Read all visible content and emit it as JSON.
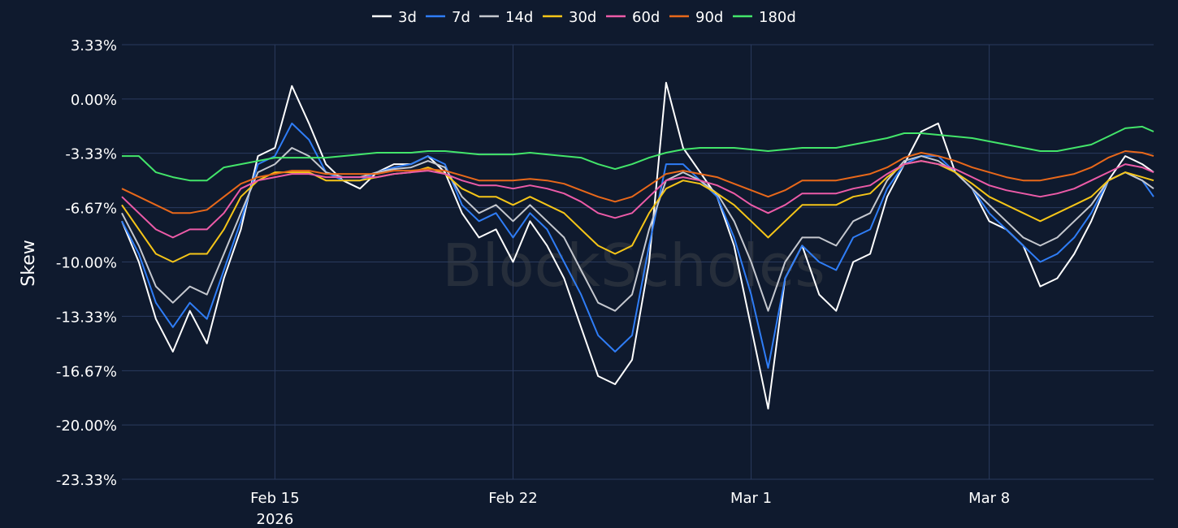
{
  "watermark": "BlockScholes",
  "colors": {
    "background": "#0f1a2e",
    "grid": "#2a3a5e"
  },
  "chart_data": {
    "type": "line",
    "title": "",
    "xlabel": "",
    "ylabel": "Skew",
    "grid": true,
    "legend_position": "top-center",
    "y_unit": "%",
    "ylim": [
      -23.33,
      3.33
    ],
    "y_ticks": [
      "3.33%",
      "0.00%",
      "-3.33%",
      "-6.67%",
      "-10.00%",
      "-13.33%",
      "-16.67%",
      "-20.00%",
      "-23.33%"
    ],
    "y_tick_values": [
      3.33,
      0.0,
      -3.33,
      -6.67,
      -10.0,
      -13.33,
      -16.67,
      -20.0,
      -23.33
    ],
    "x_ticks": [
      "Feb 15",
      "Feb 22",
      "Mar 1",
      "Mar 8"
    ],
    "x_tick_dates": [
      "2026-02-15",
      "2026-02-22",
      "2026-03-01",
      "2026-03-08"
    ],
    "x_year_label": "2026",
    "xlim": [
      "2026-02-10 12:00",
      "2026-03-12 20:00"
    ],
    "x": [
      "2026-02-10 12:00",
      "2026-02-11 00:00",
      "2026-02-11 12:00",
      "2026-02-12 00:00",
      "2026-02-12 12:00",
      "2026-02-13 00:00",
      "2026-02-13 12:00",
      "2026-02-14 00:00",
      "2026-02-14 12:00",
      "2026-02-15 00:00",
      "2026-02-15 12:00",
      "2026-02-16 00:00",
      "2026-02-16 12:00",
      "2026-02-17 00:00",
      "2026-02-17 12:00",
      "2026-02-18 00:00",
      "2026-02-18 12:00",
      "2026-02-19 00:00",
      "2026-02-19 12:00",
      "2026-02-20 00:00",
      "2026-02-20 12:00",
      "2026-02-21 00:00",
      "2026-02-21 12:00",
      "2026-02-22 00:00",
      "2026-02-22 12:00",
      "2026-02-23 00:00",
      "2026-02-23 12:00",
      "2026-02-24 00:00",
      "2026-02-24 12:00",
      "2026-02-25 00:00",
      "2026-02-25 12:00",
      "2026-02-26 00:00",
      "2026-02-26 12:00",
      "2026-02-27 00:00",
      "2026-02-27 12:00",
      "2026-02-28 00:00",
      "2026-02-28 12:00",
      "2026-03-01 00:00",
      "2026-03-01 12:00",
      "2026-03-02 00:00",
      "2026-03-02 12:00",
      "2026-03-03 00:00",
      "2026-03-03 12:00",
      "2026-03-04 00:00",
      "2026-03-04 12:00",
      "2026-03-05 00:00",
      "2026-03-05 12:00",
      "2026-03-06 00:00",
      "2026-03-06 12:00",
      "2026-03-07 00:00",
      "2026-03-07 12:00",
      "2026-03-08 00:00",
      "2026-03-08 12:00",
      "2026-03-09 00:00",
      "2026-03-09 12:00",
      "2026-03-10 00:00",
      "2026-03-10 12:00",
      "2026-03-11 00:00",
      "2026-03-11 12:00",
      "2026-03-12 00:00",
      "2026-03-12 12:00",
      "2026-03-12 20:00"
    ],
    "series": [
      {
        "name": "3d",
        "color": "#ffffff",
        "values": [
          -7.5,
          -10.0,
          -13.5,
          -15.5,
          -13.0,
          -15.0,
          -11.0,
          -8.0,
          -3.5,
          -3.0,
          0.8,
          -1.5,
          -4.0,
          -5.0,
          -5.5,
          -4.5,
          -4.0,
          -4.0,
          -3.5,
          -4.5,
          -7.0,
          -8.5,
          -8.0,
          -10.0,
          -7.5,
          -9.0,
          -11.0,
          -14.0,
          -17.0,
          -17.5,
          -16.0,
          -10.0,
          1.0,
          -3.0,
          -4.5,
          -6.0,
          -9.0,
          -14.0,
          -19.0,
          -11.0,
          -9.0,
          -12.0,
          -13.0,
          -10.0,
          -9.5,
          -6.0,
          -4.0,
          -2.0,
          -1.5,
          -4.5,
          -5.5,
          -7.5,
          -8.0,
          -9.0,
          -11.5,
          -11.0,
          -9.5,
          -7.5,
          -5.0,
          -3.5,
          -4.0,
          -4.5
        ]
      },
      {
        "name": "7d",
        "color": "#2f7df6",
        "values": [
          -7.5,
          -9.5,
          -12.5,
          -14.0,
          -12.5,
          -13.5,
          -10.5,
          -7.5,
          -4.0,
          -3.5,
          -1.5,
          -2.5,
          -4.5,
          -5.0,
          -5.0,
          -4.5,
          -4.2,
          -4.0,
          -3.5,
          -4.0,
          -6.5,
          -7.5,
          -7.0,
          -8.5,
          -7.0,
          -8.0,
          -10.0,
          -12.0,
          -14.5,
          -15.5,
          -14.5,
          -9.0,
          -4.0,
          -4.0,
          -5.0,
          -6.0,
          -8.5,
          -12.0,
          -16.5,
          -11.0,
          -9.0,
          -10.0,
          -10.5,
          -8.5,
          -8.0,
          -5.5,
          -4.0,
          -3.5,
          -3.5,
          -4.5,
          -5.5,
          -7.0,
          -8.0,
          -9.0,
          -10.0,
          -9.5,
          -8.5,
          -7.0,
          -5.0,
          -4.5,
          -5.0,
          -6.0
        ]
      },
      {
        "name": "14d",
        "color": "#c5c8cf",
        "values": [
          -7.0,
          -9.0,
          -11.5,
          -12.5,
          -11.5,
          -12.0,
          -9.5,
          -7.0,
          -4.5,
          -4.0,
          -3.0,
          -3.5,
          -4.5,
          -4.8,
          -4.8,
          -4.5,
          -4.3,
          -4.2,
          -3.8,
          -4.2,
          -6.0,
          -7.0,
          -6.5,
          -7.5,
          -6.5,
          -7.5,
          -8.5,
          -10.5,
          -12.5,
          -13.0,
          -12.0,
          -8.0,
          -5.0,
          -4.5,
          -5.0,
          -5.8,
          -7.5,
          -10.0,
          -13.0,
          -10.0,
          -8.5,
          -8.5,
          -9.0,
          -7.5,
          -7.0,
          -5.0,
          -3.8,
          -3.5,
          -3.8,
          -4.5,
          -5.5,
          -6.5,
          -7.5,
          -8.5,
          -9.0,
          -8.5,
          -7.5,
          -6.5,
          -5.0,
          -4.5,
          -5.0,
          -5.5
        ]
      },
      {
        "name": "30d",
        "color": "#f5c518",
        "values": [
          -6.5,
          -8.0,
          -9.5,
          -10.0,
          -9.5,
          -9.5,
          -8.0,
          -6.0,
          -5.0,
          -4.5,
          -4.5,
          -4.5,
          -5.0,
          -5.0,
          -5.0,
          -4.8,
          -4.6,
          -4.5,
          -4.2,
          -4.6,
          -5.5,
          -6.0,
          -6.0,
          -6.5,
          -6.0,
          -6.5,
          -7.0,
          -8.0,
          -9.0,
          -9.5,
          -9.0,
          -7.0,
          -5.5,
          -5.0,
          -5.2,
          -5.8,
          -6.5,
          -7.5,
          -8.5,
          -7.5,
          -6.5,
          -6.5,
          -6.5,
          -6.0,
          -5.8,
          -4.8,
          -4.0,
          -3.8,
          -4.0,
          -4.5,
          -5.2,
          -6.0,
          -6.5,
          -7.0,
          -7.5,
          -7.0,
          -6.5,
          -6.0,
          -5.0,
          -4.5,
          -4.8,
          -5.0
        ]
      },
      {
        "name": "60d",
        "color": "#ec5ba8",
        "values": [
          -6.0,
          -7.0,
          -8.0,
          -8.5,
          -8.0,
          -8.0,
          -7.0,
          -5.5,
          -5.0,
          -4.8,
          -4.6,
          -4.6,
          -4.8,
          -4.8,
          -4.8,
          -4.8,
          -4.6,
          -4.5,
          -4.4,
          -4.6,
          -5.0,
          -5.3,
          -5.3,
          -5.5,
          -5.3,
          -5.5,
          -5.8,
          -6.3,
          -7.0,
          -7.3,
          -7.0,
          -6.0,
          -5.0,
          -4.8,
          -5.0,
          -5.3,
          -5.8,
          -6.5,
          -7.0,
          -6.5,
          -5.8,
          -5.8,
          -5.8,
          -5.5,
          -5.3,
          -4.6,
          -4.0,
          -3.8,
          -4.0,
          -4.3,
          -4.8,
          -5.3,
          -5.6,
          -5.8,
          -6.0,
          -5.8,
          -5.5,
          -5.0,
          -4.5,
          -4.0,
          -4.2,
          -4.5
        ]
      },
      {
        "name": "90d",
        "color": "#e8681a",
        "values": [
          -5.5,
          -6.0,
          -6.5,
          -7.0,
          -7.0,
          -6.8,
          -6.0,
          -5.2,
          -4.8,
          -4.6,
          -4.4,
          -4.4,
          -4.6,
          -4.6,
          -4.6,
          -4.6,
          -4.4,
          -4.4,
          -4.3,
          -4.4,
          -4.7,
          -5.0,
          -5.0,
          -5.0,
          -4.9,
          -5.0,
          -5.2,
          -5.6,
          -6.0,
          -6.3,
          -6.0,
          -5.3,
          -4.6,
          -4.4,
          -4.6,
          -4.8,
          -5.2,
          -5.6,
          -6.0,
          -5.6,
          -5.0,
          -5.0,
          -5.0,
          -4.8,
          -4.6,
          -4.2,
          -3.6,
          -3.3,
          -3.5,
          -3.8,
          -4.2,
          -4.5,
          -4.8,
          -5.0,
          -5.0,
          -4.8,
          -4.6,
          -4.2,
          -3.6,
          -3.2,
          -3.3,
          -3.5
        ]
      },
      {
        "name": "180d",
        "color": "#43e56a",
        "values": [
          -3.5,
          -3.5,
          -4.5,
          -4.8,
          -5.0,
          -5.0,
          -4.2,
          -4.0,
          -3.8,
          -3.6,
          -3.6,
          -3.6,
          -3.6,
          -3.5,
          -3.4,
          -3.3,
          -3.3,
          -3.3,
          -3.2,
          -3.2,
          -3.3,
          -3.4,
          -3.4,
          -3.4,
          -3.3,
          -3.4,
          -3.5,
          -3.6,
          -4.0,
          -4.3,
          -4.0,
          -3.6,
          -3.3,
          -3.1,
          -3.0,
          -3.0,
          -3.0,
          -3.1,
          -3.2,
          -3.1,
          -3.0,
          -3.0,
          -3.0,
          -2.8,
          -2.6,
          -2.4,
          -2.1,
          -2.1,
          -2.2,
          -2.3,
          -2.4,
          -2.6,
          -2.8,
          -3.0,
          -3.2,
          -3.2,
          -3.0,
          -2.8,
          -2.3,
          -1.8,
          -1.7,
          -2.0
        ]
      }
    ]
  }
}
